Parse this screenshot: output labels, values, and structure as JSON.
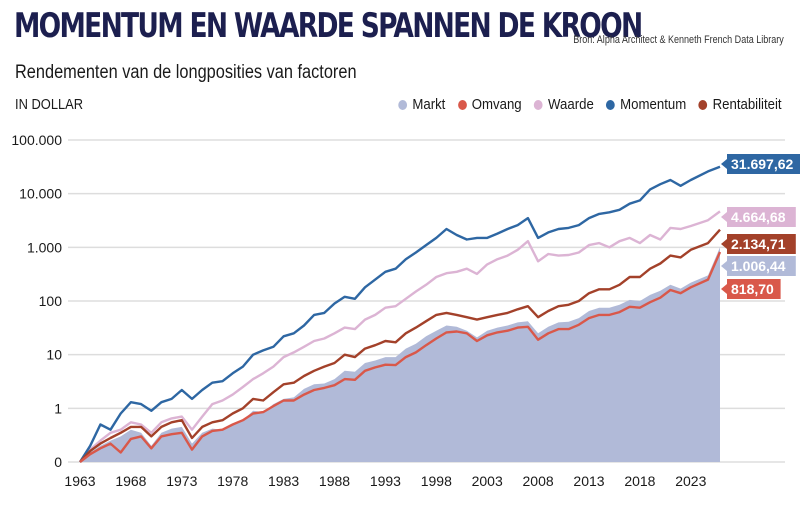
{
  "header": {
    "title": "MOMENTUM EN WAARDE SPANNEN DE KROON",
    "subtitle": "Rendementen van de longposities van factoren",
    "source": "Bron: Alpha Architect & Kenneth French Data Library",
    "unit": "IN DOLLAR"
  },
  "colors": {
    "markt": "#b1bad8",
    "omvang": "#d9584a",
    "waarde": "#dcb4d4",
    "momentum": "#2e67a3",
    "rentabiliteit": "#a3412a",
    "grid": "#dddddd"
  },
  "chart_data": {
    "type": "line",
    "title": "MOMENTUM EN WAARDE SPANNEN DE KROON",
    "subtitle": "Rendementen van de longposities van factoren",
    "xlabel": "",
    "ylabel": "IN DOLLAR",
    "yscale": "log",
    "ylim": [
      0.1,
      100000
    ],
    "yticks": [
      0.1,
      1,
      10,
      100,
      1000,
      10000,
      100000
    ],
    "ytick_labels": [
      "0",
      "1",
      "10",
      "100",
      "1.000",
      "10.000",
      "100.000"
    ],
    "xlim": [
      1963,
      2030
    ],
    "xticks": [
      1963,
      1968,
      1973,
      1978,
      1983,
      1988,
      1993,
      1998,
      2003,
      2008,
      2013,
      2018,
      2023
    ],
    "xtick_labels": [
      "1963",
      "1968",
      "1973",
      "1978",
      "1983",
      "1988",
      "1993",
      "1998",
      "2003",
      "2008",
      "2013",
      "2018",
      "2023"
    ],
    "grid": true,
    "legend_position": "top-right",
    "x": [
      1963,
      1964,
      1965,
      1966,
      1967,
      1968,
      1969,
      1970,
      1971,
      1972,
      1973,
      1974,
      1975,
      1976,
      1977,
      1978,
      1979,
      1980,
      1981,
      1982,
      1983,
      1984,
      1985,
      1986,
      1987,
      1988,
      1989,
      1990,
      1991,
      1992,
      1993,
      1994,
      1995,
      1996,
      1997,
      1998,
      1999,
      2000,
      2001,
      2002,
      2003,
      2004,
      2005,
      2006,
      2007,
      2008,
      2009,
      2010,
      2011,
      2012,
      2013,
      2014,
      2015,
      2016,
      2017,
      2018,
      2019,
      2020,
      2021,
      2022,
      2023,
      2024,
      2025
    ],
    "series": [
      {
        "name": "Markt",
        "key": "markt",
        "kind": "area",
        "end_label": "1.006,44",
        "values": [
          0.1,
          0.15,
          0.2,
          0.25,
          0.3,
          0.4,
          0.35,
          0.2,
          0.35,
          0.42,
          0.45,
          0.22,
          0.35,
          0.42,
          0.4,
          0.5,
          0.6,
          0.9,
          0.85,
          1.2,
          1.5,
          1.6,
          2.3,
          2.8,
          2.9,
          3.5,
          5,
          4.8,
          7,
          7.8,
          9,
          9,
          13,
          16,
          22,
          28,
          35,
          33,
          28,
          21,
          28,
          32,
          35,
          40,
          42,
          25,
          33,
          40,
          41,
          48,
          65,
          75,
          75,
          85,
          105,
          100,
          130,
          155,
          200,
          170,
          220,
          300,
          1006.44
        ]
      },
      {
        "name": "Omvang",
        "key": "omvang",
        "kind": "line",
        "end_label": "818,70",
        "values": [
          0.1,
          0.14,
          0.18,
          0.22,
          0.15,
          0.27,
          0.3,
          0.18,
          0.3,
          0.33,
          0.35,
          0.17,
          0.3,
          0.38,
          0.4,
          0.5,
          0.6,
          0.8,
          0.85,
          1.1,
          1.4,
          1.4,
          1.8,
          2.2,
          2.4,
          2.7,
          3.5,
          3.4,
          5,
          5.8,
          6.5,
          6.4,
          9,
          11,
          15,
          20,
          26,
          27,
          25,
          18,
          23,
          26,
          28,
          32,
          33,
          19,
          25,
          30,
          30,
          36,
          48,
          55,
          55,
          62,
          78,
          75,
          95,
          115,
          160,
          140,
          180,
          250,
          818.7
        ]
      },
      {
        "name": "Waarde",
        "key": "waarde",
        "kind": "line",
        "end_label": "4.664,68",
        "values": [
          0.1,
          0.17,
          0.25,
          0.35,
          0.4,
          0.55,
          0.5,
          0.35,
          0.55,
          0.65,
          0.7,
          0.4,
          0.7,
          1.2,
          1.4,
          1.8,
          2.5,
          3.5,
          4.5,
          6,
          9,
          11,
          14,
          18,
          20,
          25,
          32,
          30,
          45,
          55,
          75,
          80,
          110,
          150,
          200,
          280,
          330,
          350,
          400,
          320,
          480,
          600,
          700,
          900,
          1300,
          550,
          750,
          700,
          720,
          800,
          1100,
          1200,
          1000,
          1300,
          1500,
          1200,
          1700,
          1400,
          2300,
          2200,
          2500,
          3200,
          4664.68
        ]
      },
      {
        "name": "Momentum",
        "key": "momentum",
        "kind": "line",
        "end_label": "31.697,62",
        "values": [
          0.1,
          0.2,
          0.5,
          0.4,
          0.8,
          1.3,
          1.2,
          0.9,
          1.3,
          1.5,
          2.2,
          1.5,
          2.2,
          3.0,
          3.2,
          4.5,
          6,
          10,
          12,
          14,
          22,
          25,
          35,
          55,
          60,
          90,
          120,
          110,
          180,
          250,
          350,
          400,
          600,
          800,
          1100,
          1500,
          2200,
          1700,
          1400,
          1500,
          1500,
          1800,
          2200,
          2600,
          3500,
          1500,
          1900,
          2200,
          2300,
          2600,
          3500,
          4200,
          4500,
          5000,
          6500,
          7500,
          12000,
          15000,
          18000,
          14000,
          18000,
          26000,
          31697.62
        ]
      },
      {
        "name": "Rentabiliteit",
        "key": "rentabiliteit",
        "kind": "line",
        "end_label": "2.134,71",
        "values": [
          0.1,
          0.16,
          0.22,
          0.28,
          0.35,
          0.45,
          0.45,
          0.3,
          0.45,
          0.55,
          0.6,
          0.28,
          0.45,
          0.55,
          0.6,
          0.8,
          1.0,
          1.5,
          1.4,
          2.0,
          2.8,
          3,
          4,
          5,
          6,
          7,
          10,
          9,
          13,
          15,
          18,
          17,
          25,
          32,
          42,
          55,
          60,
          55,
          50,
          45,
          50,
          55,
          60,
          70,
          80,
          50,
          65,
          80,
          85,
          100,
          140,
          165,
          165,
          200,
          280,
          280,
          400,
          500,
          700,
          650,
          900,
          1200,
          2134.71
        ]
      }
    ]
  }
}
